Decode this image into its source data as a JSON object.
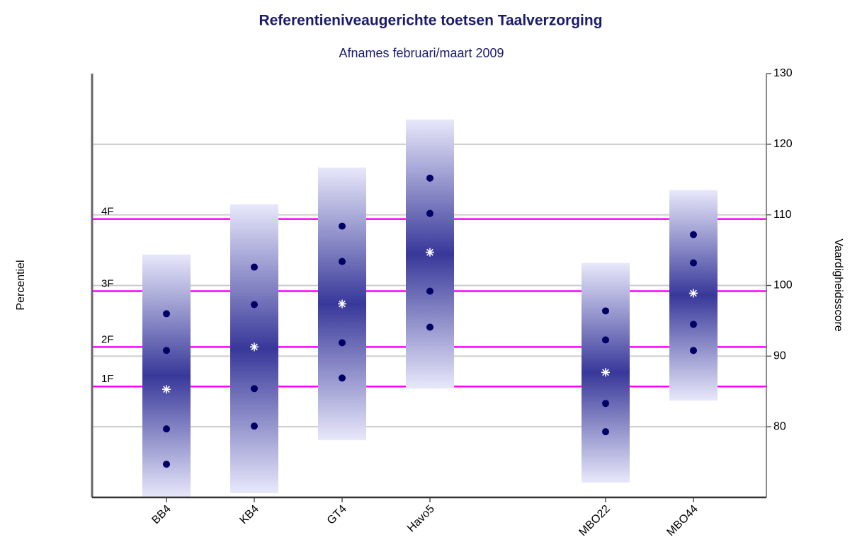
{
  "chart_data": {
    "type": "range_percentile",
    "title": "Referentieniveaugerichte toetsen Taalverzorging",
    "subtitle": "Afnames februari/maart 2009",
    "y_label_left": "Percentiel",
    "y_label_right": "Vaardigheidsscore",
    "categories": [
      "BB4",
      "KB4",
      "GT4",
      "Havo5",
      null,
      "MBO22",
      "MBO44"
    ],
    "low": [
      70,
      70.6,
      78.1,
      85.4,
      null,
      72.1,
      83.7
    ],
    "high": [
      104.4,
      111.5,
      116.7,
      123.5,
      null,
      103.2,
      113.5
    ],
    "percentiles": [
      [
        74.7,
        79.7,
        85.3,
        90.8,
        96.0
      ],
      [
        80.1,
        85.4,
        91.3,
        97.3,
        102.6
      ],
      [
        86.9,
        91.9,
        97.4,
        103.4,
        108.4
      ],
      [
        94.1,
        99.2,
        104.7,
        110.2,
        115.2
      ],
      null,
      [
        79.3,
        83.3,
        87.7,
        92.3,
        96.4
      ],
      [
        90.8,
        94.5,
        98.9,
        103.2,
        107.2
      ]
    ],
    "point_color": "#000066",
    "median_color": "#ffffff",
    "reference_lines": [
      {
        "label": "4F",
        "value": 109.4
      },
      {
        "label": "3F",
        "value": 99.2
      },
      {
        "label": "2F",
        "value": 91.3
      },
      {
        "label": "1F",
        "value": 85.7
      }
    ],
    "reference_color": "#ff00ff",
    "ylim": [
      70,
      130
    ],
    "yticks": [
      80,
      90,
      100,
      110,
      120,
      130
    ],
    "grid": true
  }
}
